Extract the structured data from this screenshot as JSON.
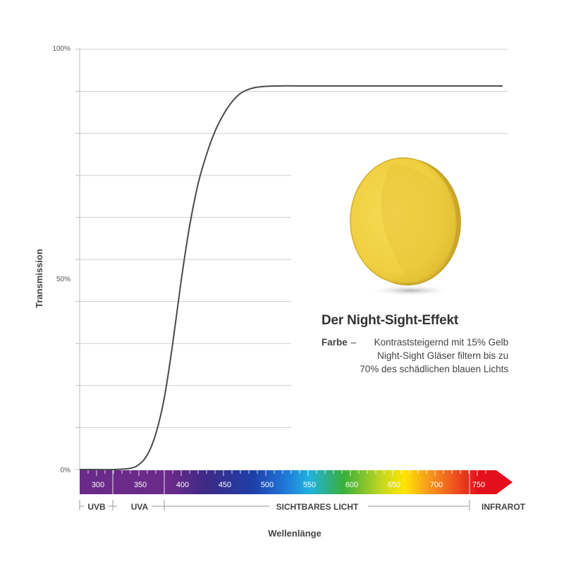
{
  "chart_data": {
    "type": "line",
    "ylabel": "Transmission",
    "xlabel": "Wellenlänge",
    "y_ticks": [
      "100%",
      "50%",
      "0%"
    ],
    "ylim": [
      0,
      100
    ],
    "xlim": [
      280,
      780
    ],
    "grid": true,
    "series": [
      {
        "color": "#4a4a4a",
        "x": [
          280,
          300,
          320,
          340,
          350,
          360,
          370,
          380,
          390,
          400,
          410,
          420,
          430,
          440,
          450,
          460,
          470,
          480,
          490,
          500,
          520,
          540,
          560,
          600,
          650,
          700,
          750,
          780
        ],
        "y": [
          0,
          0,
          0,
          0.3,
          1.2,
          3.5,
          8.5,
          17,
          30,
          45,
          58,
          68,
          75,
          80.5,
          84.5,
          87.5,
          89.5,
          90.5,
          91,
          91.2,
          91.3,
          91.3,
          91.3,
          91.3,
          91.3,
          91.3,
          91.3,
          91.3
        ]
      }
    ],
    "wavelength_labels": [
      "300",
      "350",
      "400",
      "450",
      "500",
      "550",
      "600",
      "650",
      "700",
      "750"
    ],
    "regions": [
      "UVB",
      "UVA",
      "SICHTBARES LICHT",
      "INFRAROT"
    ]
  },
  "info": {
    "title": "Der Night-Sight-Effekt",
    "key": "Farbe",
    "separator": "–",
    "lines": [
      "Kontraststeigernd mit 15% Gelb",
      "Night-Sight Gläser filtern bis zu",
      "70% des schädlichen blauen Lichts"
    ]
  },
  "colors": {
    "curve": "#4a4a4a",
    "grid": "#cfcfcf",
    "lens": "#f2d34a",
    "uv": "#6a2a8a",
    "infrared": "#e3101c"
  }
}
